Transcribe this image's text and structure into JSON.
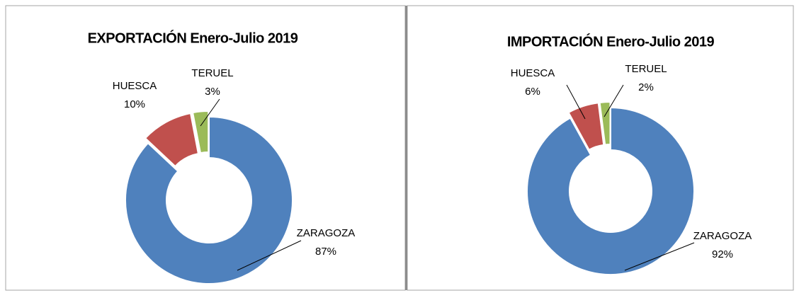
{
  "chart_data": [
    {
      "type": "donut",
      "title": "EXPORTACIÓN Enero-Julio 2019",
      "categories": [
        "ZARAGOZA",
        "HUESCA",
        "TERUEL"
      ],
      "values": [
        87,
        10,
        3
      ],
      "value_labels": [
        "87%",
        "10%",
        "3%"
      ],
      "colors": [
        "#4f81bd",
        "#c0504d",
        "#9bbb59"
      ]
    },
    {
      "type": "donut",
      "title": "IMPORTACIÓN Enero-Julio 2019",
      "categories": [
        "ZARAGOZA",
        "HUESCA",
        "TERUEL"
      ],
      "values": [
        92,
        6,
        2
      ],
      "value_labels": [
        "92%",
        "6%",
        "2%"
      ],
      "colors": [
        "#4f81bd",
        "#c0504d",
        "#9bbb59"
      ]
    }
  ]
}
